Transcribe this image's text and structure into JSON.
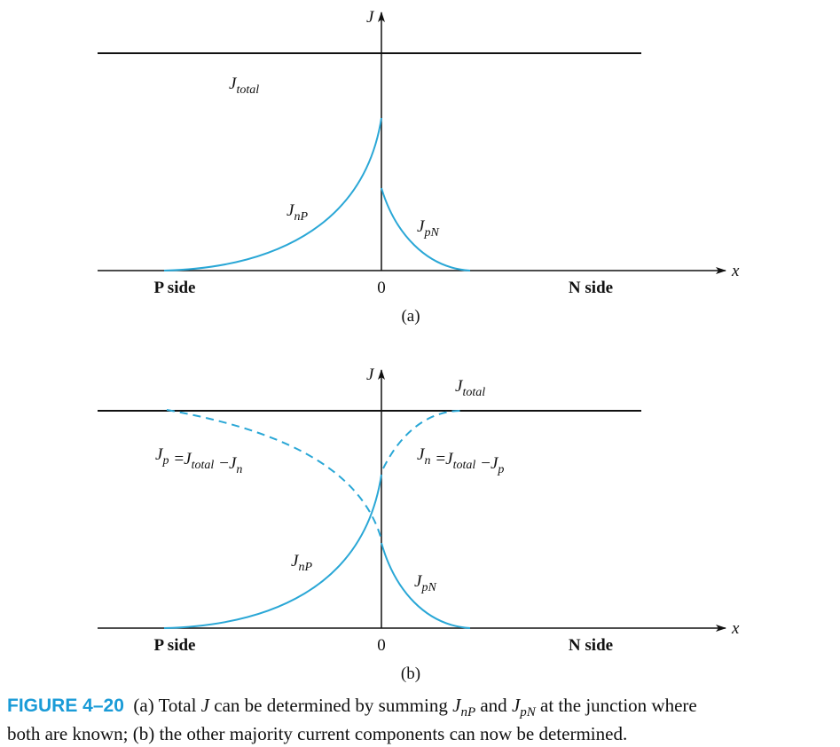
{
  "panels": [
    {
      "y_axis": "J",
      "x_axis": "x",
      "origin": "0",
      "left_side": "P side",
      "right_side": "N side",
      "caption": "(a)",
      "labels": [
        {
          "base": "J",
          "sub": "total"
        },
        {
          "base": "J",
          "sub": "nP"
        },
        {
          "base": "J",
          "sub": "pN"
        }
      ]
    },
    {
      "y_axis": "J",
      "x_axis": "x",
      "origin": "0",
      "left_side": "P side",
      "right_side": "N side",
      "caption": "(b)",
      "labels": [
        {
          "base": "J",
          "sub": "total"
        },
        {
          "base": "J",
          "sub": "nP"
        },
        {
          "base": "J",
          "sub": "pN"
        }
      ],
      "equations": [
        {
          "terms": [
            {
              "base": "J",
              "sub": "p"
            },
            {
              "base": "J",
              "sub": "total"
            },
            {
              "base": "J",
              "sub": "n"
            }
          ],
          "ops": [
            "=",
            "−"
          ]
        },
        {
          "terms": [
            {
              "base": "J",
              "sub": "n"
            },
            {
              "base": "J",
              "sub": "total"
            },
            {
              "base": "J",
              "sub": "p"
            }
          ],
          "ops": [
            "=",
            "−"
          ]
        }
      ]
    }
  ],
  "caption": {
    "label": "FIGURE 4–20",
    "line1": [
      {
        "text": "(a) Total "
      },
      {
        "base": "J"
      },
      {
        "text": " can be determined by summing "
      },
      {
        "base": "J",
        "sub": "nP"
      },
      {
        "text": " and "
      },
      {
        "base": "J",
        "sub": "pN"
      },
      {
        "text": " at the junction where"
      }
    ],
    "line2": "both are known; (b) the other majority current components can now be determined."
  }
}
